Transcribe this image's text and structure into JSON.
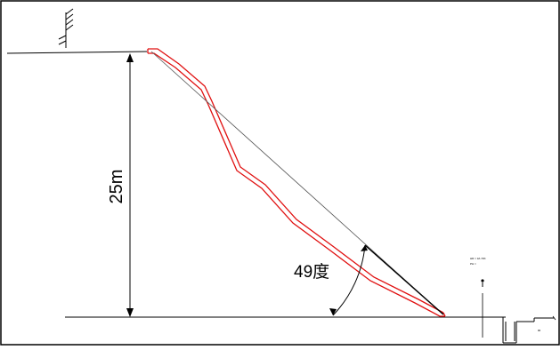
{
  "labels": {
    "height": "25m",
    "angle": "49度",
    "tiny_line_1": "HR = 3A 7ZK",
    "tiny_line_2": "PH ="
  },
  "colors": {
    "profile_red": "#e01010",
    "line_black": "#000000",
    "line_gray": "#555555"
  }
}
